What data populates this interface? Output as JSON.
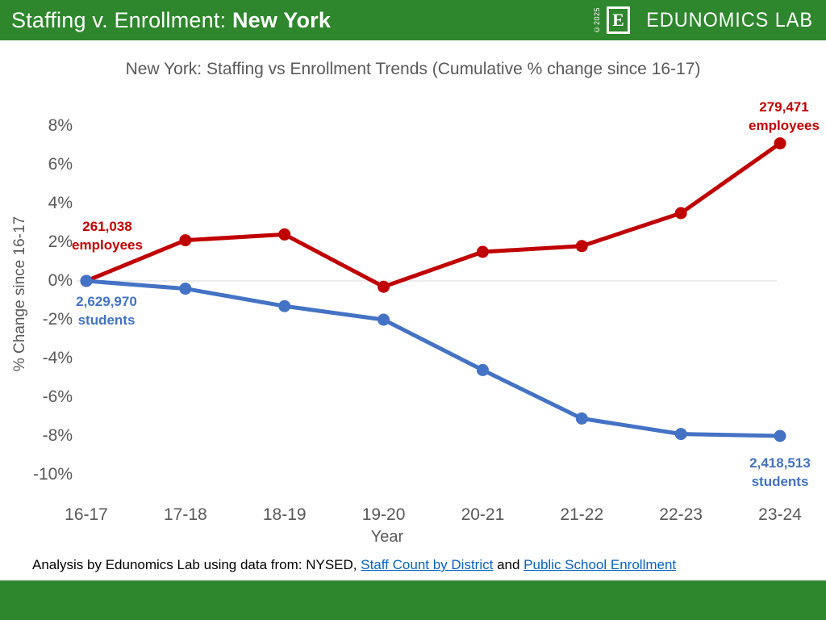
{
  "header": {
    "title_prefix": "Staffing v. Enrollment: ",
    "title_state": "New York",
    "logo": {
      "copyright": "©2025",
      "monogram": "E",
      "wordmark": "EDUNOMICS LAB"
    }
  },
  "chart_data": {
    "type": "line",
    "title": "New York: Staffing vs Enrollment Trends (Cumulative % change since 16-17)",
    "xlabel": "Year",
    "ylabel": "% Change since 16-17",
    "categories": [
      "16-17",
      "17-18",
      "18-19",
      "19-20",
      "20-21",
      "21-22",
      "22-23",
      "23-24"
    ],
    "series": [
      {
        "name": "employees",
        "color": "#C00000",
        "values": [
          0,
          2.1,
          2.4,
          -0.3,
          1.5,
          1.8,
          3.5,
          7.1
        ]
      },
      {
        "name": "students",
        "color": "#4472C4",
        "values": [
          0,
          -0.4,
          -1.3,
          -2.0,
          -4.6,
          -7.1,
          -7.9,
          -8.0
        ]
      }
    ],
    "yticks": [
      8,
      6,
      4,
      2,
      0,
      -2,
      -4,
      -6,
      -8,
      -10
    ],
    "ytick_labels": [
      "8%",
      "6%",
      "4%",
      "2%",
      "0%",
      "-2%",
      "-4%",
      "-6%",
      "-8%",
      "-10%"
    ],
    "ylim": [
      -10,
      8
    ],
    "grid": "zero-line-only",
    "legend": "none",
    "annotations": [
      {
        "value": "261,038",
        "label": "employees",
        "series": "employees",
        "anchor": "first"
      },
      {
        "value": "2,629,970",
        "label": "students",
        "series": "students",
        "anchor": "first"
      },
      {
        "value": "279,471",
        "label": "employees",
        "series": "employees",
        "anchor": "last"
      },
      {
        "value": "2,418,513",
        "label": "students",
        "series": "students",
        "anchor": "last"
      }
    ]
  },
  "footer": {
    "prefix": "Analysis by Edunomics Lab using data from: NYSED, ",
    "link1": "Staff Count by District",
    "middle": " and ",
    "link2": "Public School Enrollment"
  },
  "colors": {
    "brand_green": "#2E862D",
    "employees_red": "#C00000",
    "students_blue": "#4472C4",
    "axis_gray": "#595959",
    "link_blue": "#0563C1",
    "zero_line_gray": "#D9D9D9"
  }
}
